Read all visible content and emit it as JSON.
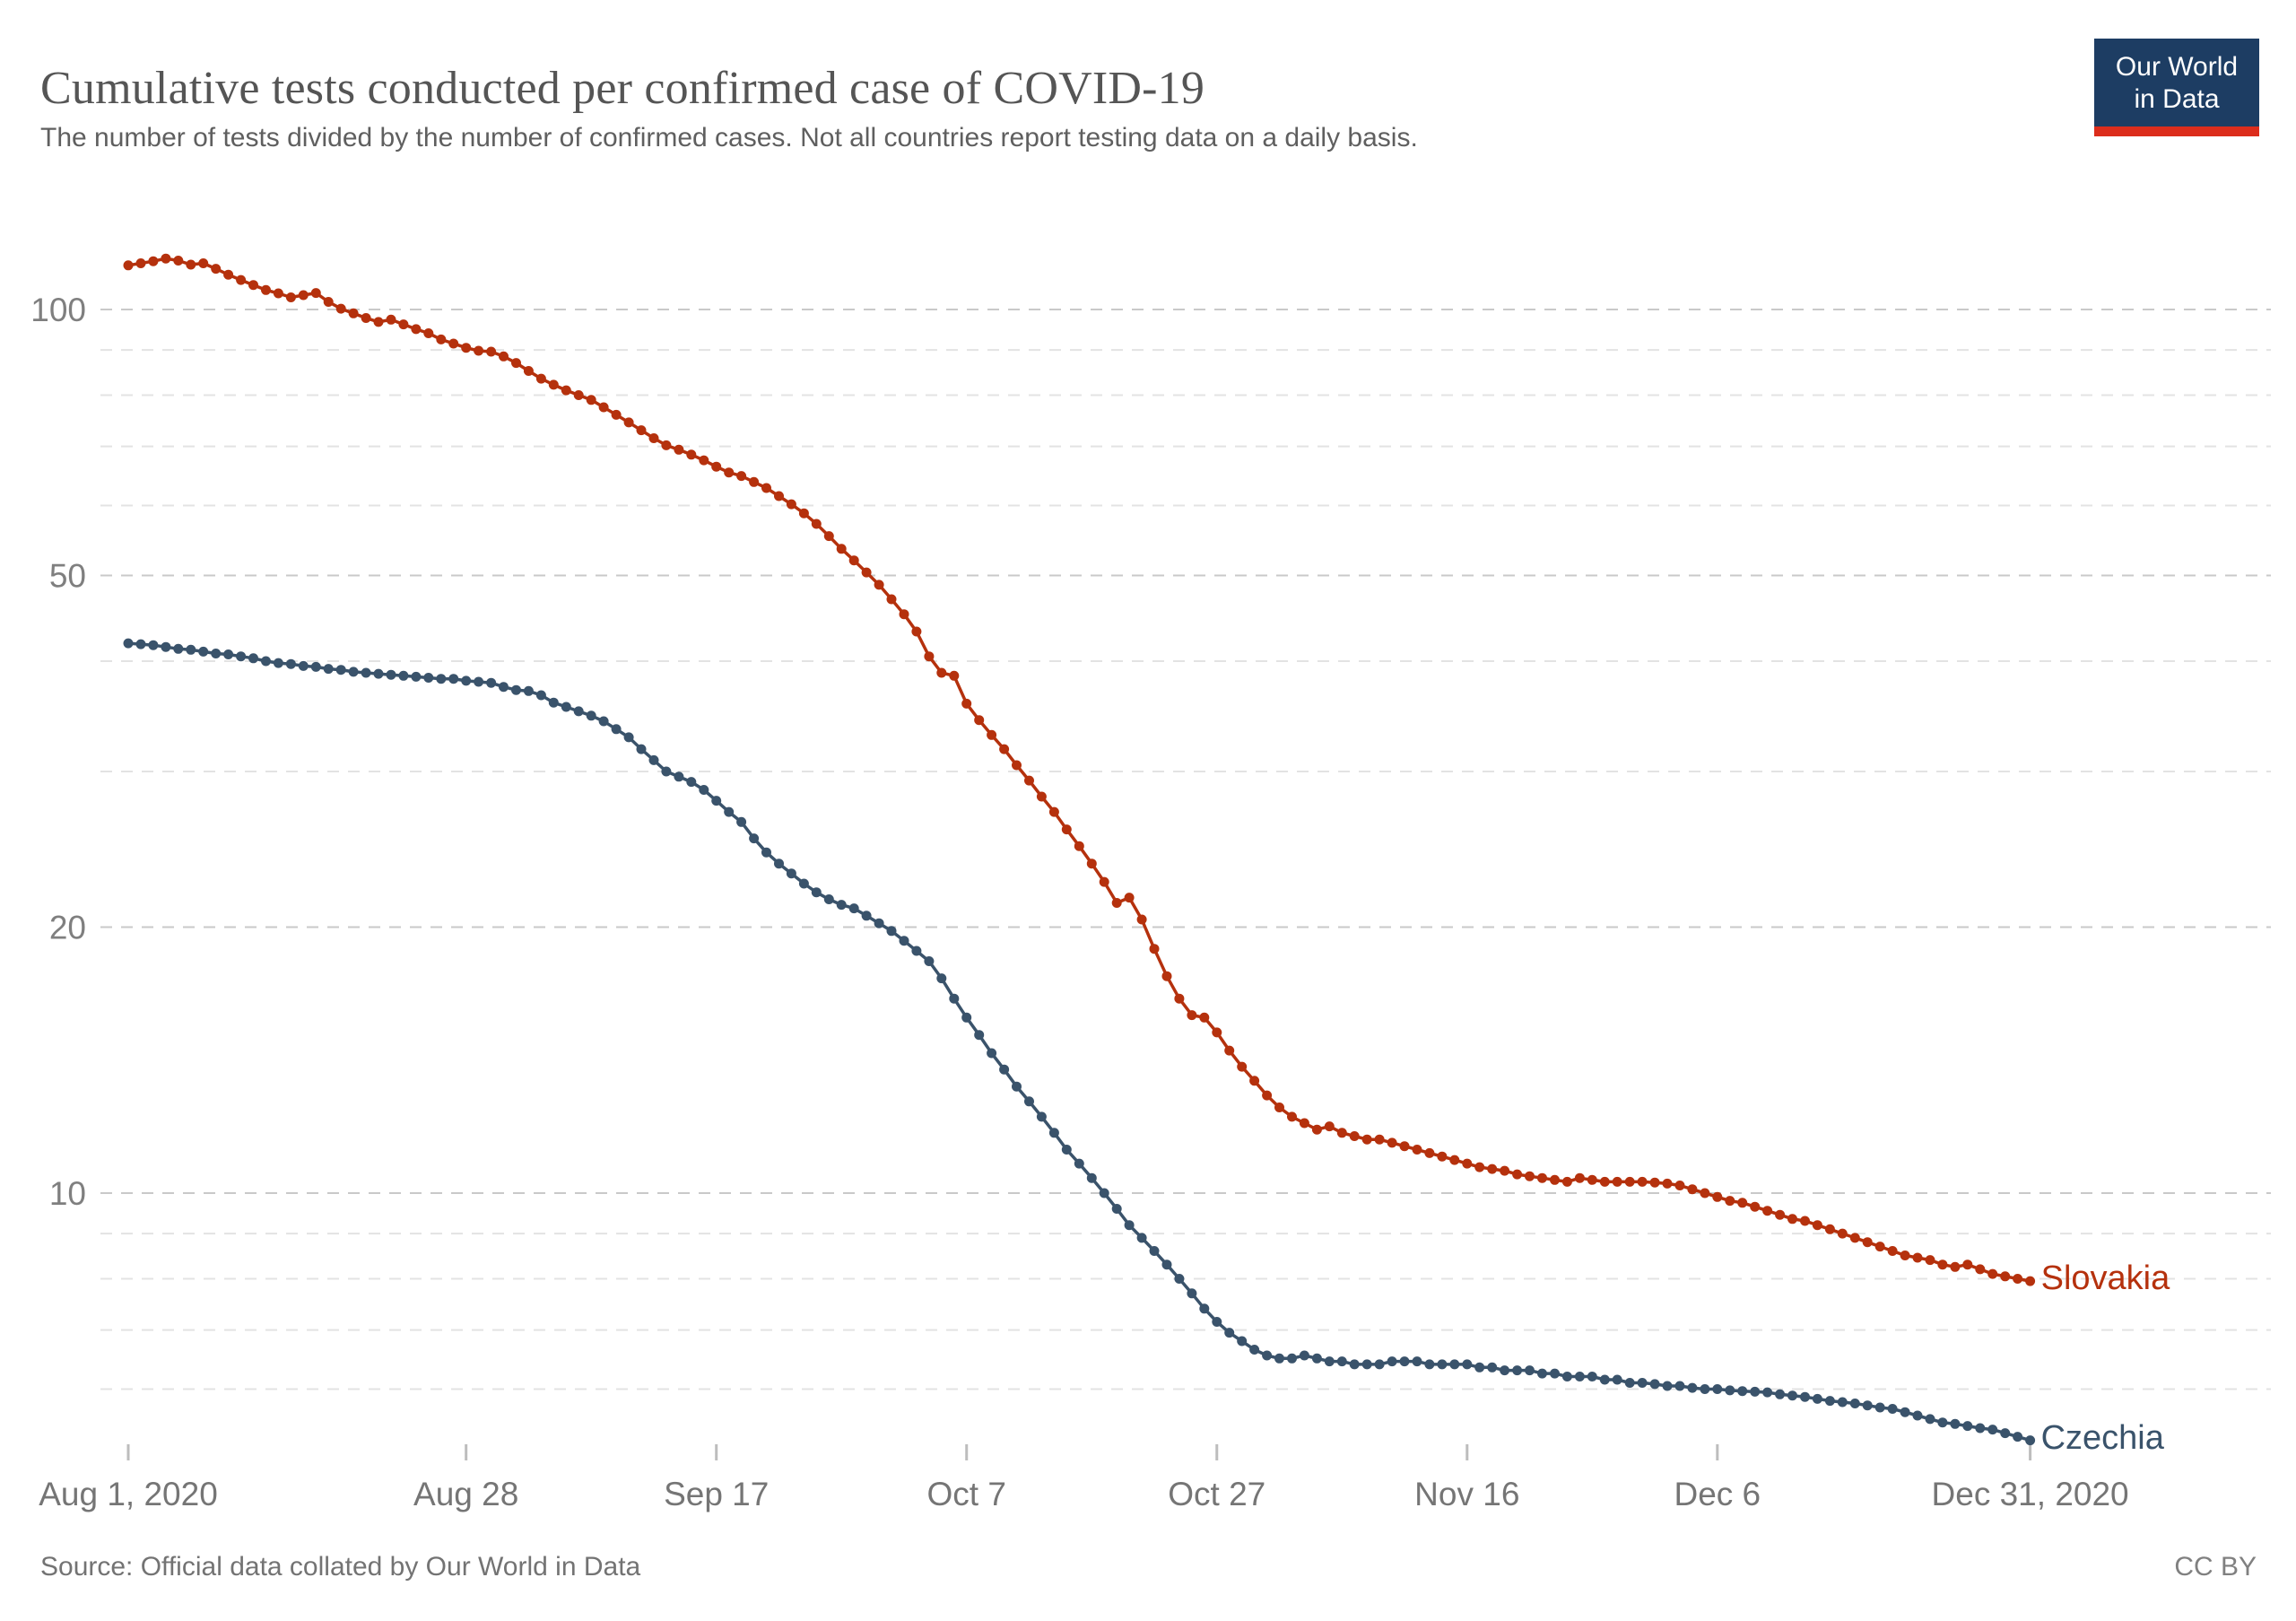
{
  "header": {
    "title": "Cumulative tests conducted per confirmed case of COVID-19",
    "subtitle": "The number of tests divided by the number of confirmed cases. Not all countries report testing data on a daily basis.",
    "logo": {
      "line1": "Our World",
      "line2": "in Data",
      "bg_color": "#1d3d63",
      "bar_color": "#dc2d1c"
    }
  },
  "footer": {
    "source": "Source: Official data collated by Our World in Data",
    "license": "CC BY"
  },
  "chart_data": {
    "type": "line",
    "title": "Cumulative tests conducted per confirmed case of COVID-19",
    "subtitle": "The number of tests divided by the number of confirmed cases. Not all countries report testing data on a daily basis.",
    "y_scale": "log",
    "ylim": [
      5,
      120
    ],
    "grid": "dashed-horizontal",
    "y_gridlines": [
      100,
      90,
      80,
      70,
      60,
      50,
      40,
      30,
      20,
      10,
      9,
      8,
      7,
      6
    ],
    "y_labeled_ticks": [
      100,
      50,
      20,
      10
    ],
    "x_start_date": "Aug 1, 2020",
    "x_end_date": "Dec 31, 2020",
    "x_unit": "day",
    "x_ticks": [
      {
        "label": "Aug 1, 2020",
        "day": 0
      },
      {
        "label": "Aug 28",
        "day": 27
      },
      {
        "label": "Sep 17",
        "day": 47
      },
      {
        "label": "Oct 7",
        "day": 67
      },
      {
        "label": "Oct 27",
        "day": 87
      },
      {
        "label": "Nov 16",
        "day": 107
      },
      {
        "label": "Dec 6",
        "day": 127
      },
      {
        "label": "Dec 31, 2020",
        "day": 152
      }
    ],
    "legend_position": "end-of-line-labels",
    "series": [
      {
        "name": "Slovakia",
        "color": "#b5310d",
        "values": [
          112.2,
          112.8,
          113.4,
          114.2,
          113.6,
          112.4,
          112.8,
          111.2,
          109.5,
          108,
          106.6,
          105.2,
          104.3,
          103.2,
          103.8,
          104.4,
          102,
          100.2,
          99,
          97.8,
          96.8,
          97.4,
          96.2,
          95,
          94,
          92.5,
          91.5,
          90.5,
          89.8,
          89.6,
          88.5,
          87,
          85.2,
          83.5,
          82.2,
          81,
          80,
          79,
          77.5,
          76,
          74.5,
          73,
          71.5,
          70.2,
          69.4,
          68.5,
          67.5,
          66.4,
          65.4,
          64.8,
          63.8,
          62.8,
          61.5,
          60.2,
          58.8,
          57.2,
          55.4,
          53.6,
          52,
          50.4,
          48.8,
          47,
          45.2,
          43.2,
          40.5,
          38.8,
          38.5,
          35.8,
          34.3,
          33,
          31.8,
          30.5,
          29.3,
          28.1,
          27,
          25.8,
          24.7,
          23.6,
          22.5,
          21.3,
          21.6,
          20.4,
          18.9,
          17.6,
          16.6,
          15.9,
          15.8,
          15.2,
          14.5,
          13.9,
          13.4,
          12.9,
          12.5,
          12.2,
          12,
          11.8,
          11.9,
          11.7,
          11.6,
          11.5,
          11.5,
          11.4,
          11.3,
          11.2,
          11.1,
          11,
          10.9,
          10.8,
          10.7,
          10.65,
          10.6,
          10.5,
          10.45,
          10.4,
          10.35,
          10.3,
          10.4,
          10.35,
          10.3,
          10.3,
          10.3,
          10.3,
          10.28,
          10.25,
          10.2,
          10.1,
          10,
          9.9,
          9.8,
          9.75,
          9.65,
          9.55,
          9.45,
          9.35,
          9.3,
          9.2,
          9.1,
          9,
          8.9,
          8.8,
          8.7,
          8.6,
          8.5,
          8.45,
          8.4,
          8.3,
          8.25,
          8.3,
          8.2,
          8.1,
          8.05,
          8,
          7.95
        ]
      },
      {
        "name": "Czechia",
        "color": "#3a536b",
        "values": [
          41.9,
          41.8,
          41.7,
          41.5,
          41.3,
          41.2,
          41,
          40.8,
          40.7,
          40.5,
          40.3,
          40,
          39.8,
          39.7,
          39.5,
          39.4,
          39.2,
          39.1,
          38.9,
          38.8,
          38.7,
          38.6,
          38.5,
          38.4,
          38.3,
          38.2,
          38.2,
          38,
          37.9,
          37.8,
          37.4,
          37.1,
          37,
          36.6,
          35.9,
          35.5,
          35.1,
          34.7,
          34.2,
          33.5,
          32.8,
          31.8,
          30.9,
          30,
          29.6,
          29.2,
          28.6,
          27.8,
          27,
          26.3,
          25.2,
          24.3,
          23.6,
          23,
          22.4,
          21.9,
          21.5,
          21.2,
          21,
          20.6,
          20.2,
          19.8,
          19.3,
          18.8,
          18.3,
          17.5,
          16.6,
          15.8,
          15.1,
          14.4,
          13.8,
          13.2,
          12.7,
          12.2,
          11.7,
          11.2,
          10.8,
          10.4,
          10,
          9.6,
          9.2,
          8.9,
          8.6,
          8.3,
          8,
          7.7,
          7.4,
          7.15,
          6.95,
          6.8,
          6.65,
          6.55,
          6.5,
          6.5,
          6.55,
          6.5,
          6.45,
          6.45,
          6.4,
          6.4,
          6.4,
          6.45,
          6.45,
          6.45,
          6.4,
          6.4,
          6.4,
          6.4,
          6.35,
          6.35,
          6.3,
          6.3,
          6.3,
          6.25,
          6.25,
          6.2,
          6.2,
          6.2,
          6.15,
          6.15,
          6.1,
          6.1,
          6.08,
          6.05,
          6.05,
          6.02,
          6,
          6,
          5.98,
          5.97,
          5.96,
          5.95,
          5.92,
          5.9,
          5.88,
          5.85,
          5.82,
          5.8,
          5.78,
          5.75,
          5.72,
          5.7,
          5.65,
          5.6,
          5.55,
          5.5,
          5.48,
          5.45,
          5.42,
          5.4,
          5.35,
          5.3,
          5.25
        ]
      }
    ]
  }
}
